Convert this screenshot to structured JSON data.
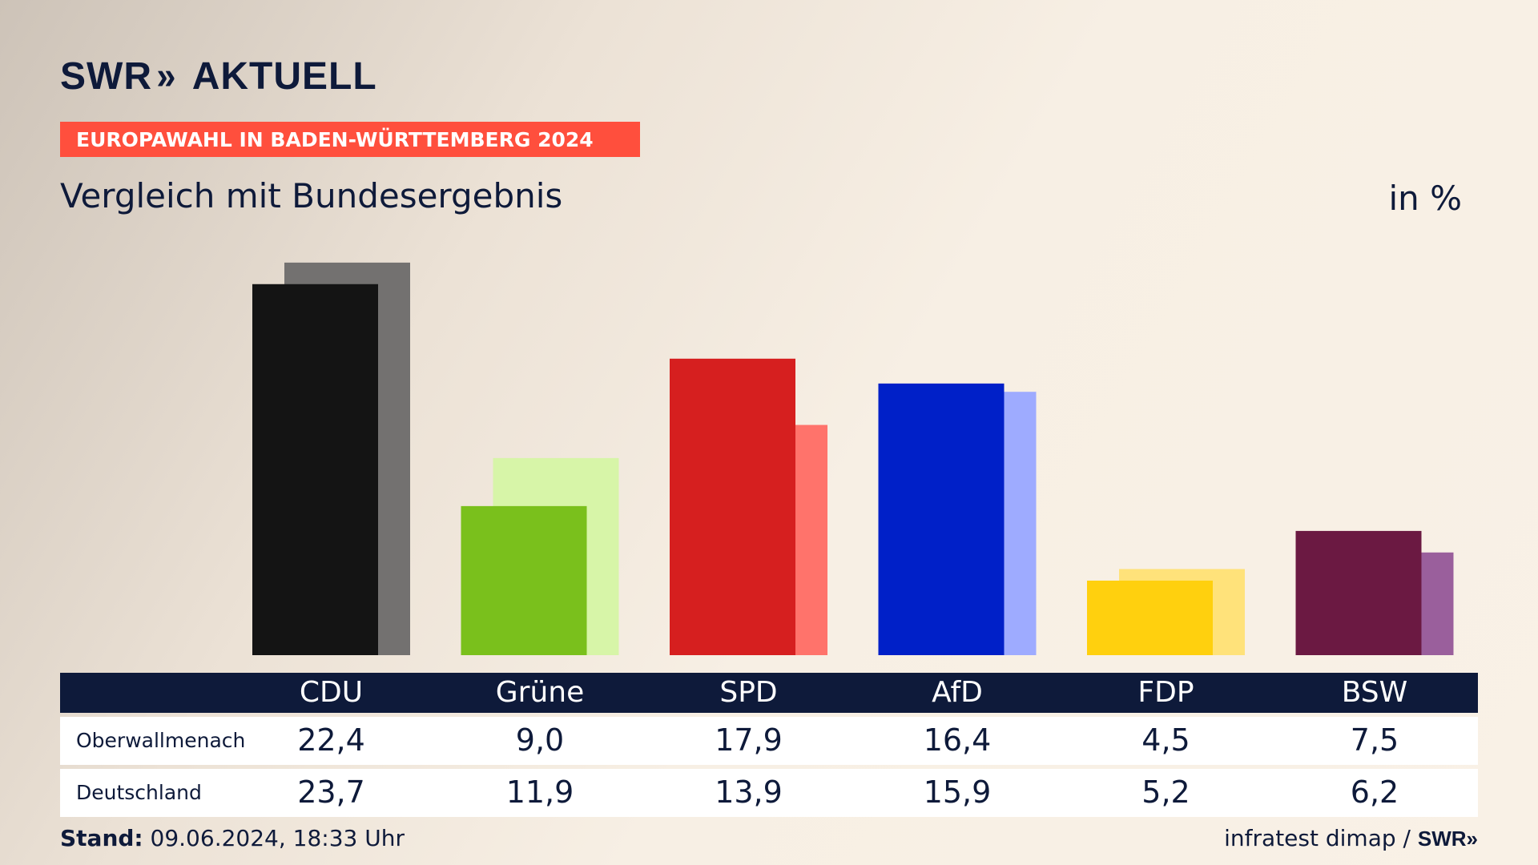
{
  "header": {
    "logo_text": "SWR",
    "logo_arrows": "»",
    "logo_suffix": "AKTUELL",
    "banner": "EUROPAWAHL IN BADEN-WÜRTTEMBERG 2024",
    "title": "Vergleich mit Bundesergebnis",
    "unit": "in %"
  },
  "chart_data": {
    "type": "bar",
    "categories": [
      "CDU",
      "Grüne",
      "SPD",
      "AfD",
      "FDP",
      "BSW"
    ],
    "series": [
      {
        "name": "Oberwallmenach",
        "values": [
          "22,4",
          "9,0",
          "17,9",
          "16,4",
          "4,5",
          "7,5"
        ]
      },
      {
        "name": "Deutschland",
        "values": [
          "23,7",
          "11,9",
          "13,9",
          "15,9",
          "5,2",
          "6,2"
        ]
      }
    ],
    "ylim": [
      0,
      25
    ]
  },
  "colors": {
    "primary": [
      "#141414",
      "#7ac01c",
      "#d61f1f",
      "#0020c8",
      "#ffd00e",
      "#6b1942"
    ],
    "secondary": [
      "#737170",
      "#d7f5a8",
      "#ff736b",
      "#9eabff",
      "#ffe27a",
      "#9a5f9c"
    ],
    "banner": "#ff4f3d",
    "navy": "#0e1a3a"
  },
  "footer": {
    "stand_label": "Stand:",
    "stand_value": "09.06.2024, 18:33 Uhr",
    "source": "infratest dimap /",
    "source_logo": "SWR»"
  }
}
